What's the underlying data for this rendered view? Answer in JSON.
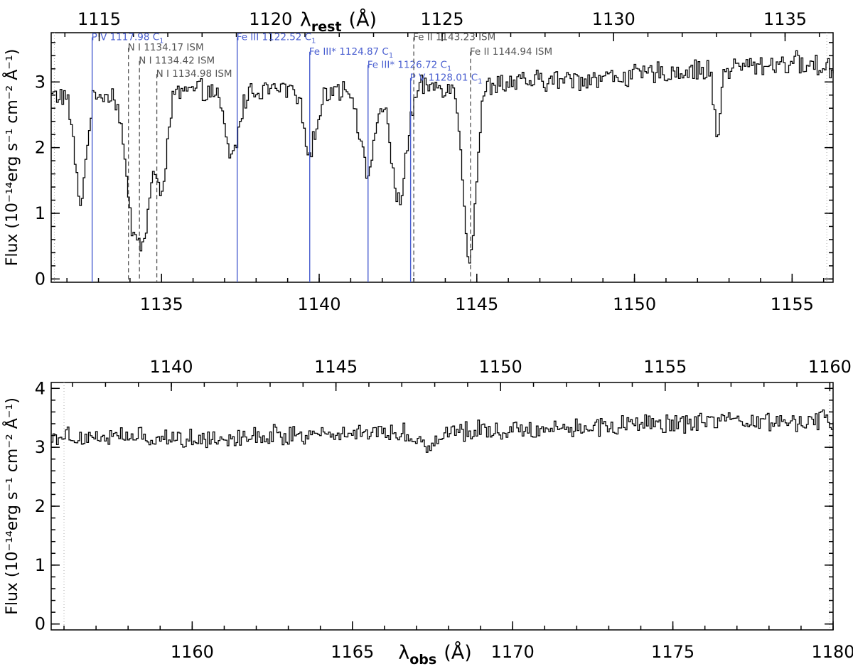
{
  "chart_data": [
    {
      "type": "line",
      "panel": "top",
      "top_axis": {
        "label_main": "λ",
        "label_sub": "rest",
        "label_unit": "(Å)",
        "ticks": [
          1115,
          1120,
          1125,
          1130,
          1135
        ],
        "lim": [
          1113.6,
          1136.4
        ]
      },
      "xlim": [
        1131.5,
        1156.3
      ],
      "xticks": [
        1135,
        1140,
        1145,
        1150,
        1155
      ],
      "xlabel_main": "",
      "xlabel_sub": "",
      "xlabel_unit": "",
      "ylim": [
        -0.05,
        3.75
      ],
      "yticks": [
        0,
        1,
        2,
        3
      ],
      "ylabel": "Flux (10⁻¹⁴erg s⁻¹ cm⁻² Å⁻¹)",
      "series_color": "#000000",
      "edge_markers": [
        1131.6,
        1156.1
      ],
      "continuum": [
        [
          1131.6,
          2.8
        ],
        [
          1135.5,
          2.85
        ],
        [
          1140,
          2.9
        ],
        [
          1145,
          2.95
        ],
        [
          1150,
          3.1
        ],
        [
          1155,
          3.3
        ],
        [
          1156.2,
          3.2
        ]
      ],
      "absorption": [
        {
          "center": 1132.4,
          "depth": 1.6,
          "width": 0.18
        },
        {
          "center": 1134.05,
          "depth": 1.9,
          "width": 0.22
        },
        {
          "center": 1134.45,
          "depth": 1.8,
          "width": 0.18
        },
        {
          "center": 1134.95,
          "depth": 1.5,
          "width": 0.18
        },
        {
          "center": 1137.2,
          "depth": 1.0,
          "width": 0.22
        },
        {
          "center": 1139.7,
          "depth": 0.9,
          "width": 0.22
        },
        {
          "center": 1141.5,
          "depth": 1.3,
          "width": 0.22
        },
        {
          "center": 1142.5,
          "depth": 1.7,
          "width": 0.25
        },
        {
          "center": 1144.75,
          "depth": 2.6,
          "width": 0.2
        },
        {
          "center": 1152.6,
          "depth": 1.0,
          "width": 0.1
        }
      ],
      "line_ids": [
        {
          "label": "P V 1117.98 C",
          "sub": "1",
          "x": 1132.8,
          "top": 3.68,
          "color": "#4a5fd0",
          "style": "solid"
        },
        {
          "label": "N I 1134.17 ISM",
          "sub": "",
          "x": 1133.95,
          "top": 3.52,
          "color": "#555555",
          "style": "dashed"
        },
        {
          "label": "N I 1134.42 ISM",
          "sub": "",
          "x": 1134.3,
          "top": 3.32,
          "color": "#555555",
          "style": "dashed"
        },
        {
          "label": "N I 1134.98 ISM",
          "sub": "",
          "x": 1134.85,
          "top": 3.12,
          "color": "#555555",
          "style": "dashed"
        },
        {
          "label": "Fe III 1122.52 C",
          "sub": "1",
          "x": 1137.4,
          "top": 3.68,
          "color": "#4a5fd0",
          "style": "solid"
        },
        {
          "label": "Fe III* 1124.87 C",
          "sub": "1",
          "x": 1139.7,
          "top": 3.46,
          "color": "#4a5fd0",
          "style": "solid"
        },
        {
          "label": "Fe III* 1126.72 C",
          "sub": "1",
          "x": 1141.55,
          "top": 3.26,
          "color": "#4a5fd0",
          "style": "solid"
        },
        {
          "label": "P V 1128.01 C",
          "sub": "1",
          "x": 1142.9,
          "top": 3.06,
          "color": "#4a5fd0",
          "style": "solid"
        },
        {
          "label": "Fe II 1143.23 ISM",
          "sub": "",
          "x": 1143.0,
          "top": 3.68,
          "color": "#555555",
          "style": "dashed"
        },
        {
          "label": "Fe II 1144.94 ISM",
          "sub": "",
          "x": 1144.8,
          "top": 3.46,
          "color": "#555555",
          "style": "dashed"
        }
      ]
    },
    {
      "type": "line",
      "panel": "bottom",
      "top_axis": {
        "label_main": "",
        "label_sub": "",
        "label_unit": "",
        "ticks": [
          1140,
          1145,
          1150,
          1155,
          1160
        ],
        "lim": [
          1136.35,
          1160.1
        ]
      },
      "xlim": [
        1155.6,
        1180.0
      ],
      "xticks": [
        1160,
        1165,
        1170,
        1175,
        1180
      ],
      "xlabel_main": "λ",
      "xlabel_sub": "obs",
      "xlabel_unit": "(Å)",
      "ylim": [
        -0.1,
        4.1
      ],
      "yticks": [
        0,
        1,
        2,
        3,
        4
      ],
      "ylabel": "Flux (10⁻¹⁴erg s⁻¹ cm⁻² Å⁻¹)",
      "series_color": "#000000",
      "edge_markers": [
        1156.0,
        1179.9
      ],
      "continuum": [
        [
          1155.6,
          3.2
        ],
        [
          1160,
          3.15
        ],
        [
          1165,
          3.25
        ],
        [
          1170,
          3.3
        ],
        [
          1175,
          3.4
        ],
        [
          1180,
          3.45
        ]
      ],
      "absorption": [
        {
          "center": 1167.3,
          "depth": 0.25,
          "width": 0.3
        }
      ],
      "line_ids": []
    }
  ]
}
